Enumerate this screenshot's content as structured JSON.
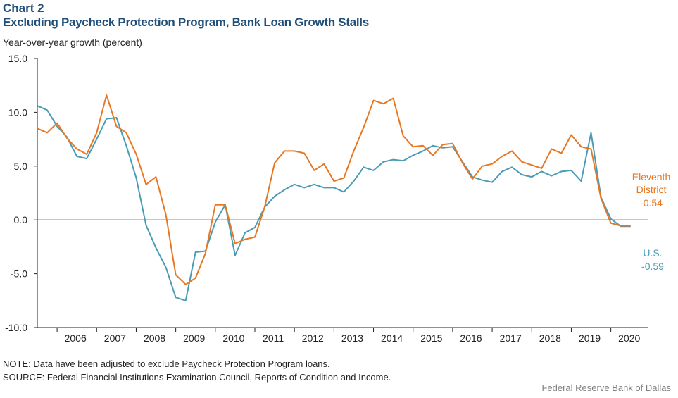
{
  "header": {
    "chart_number": "Chart 2",
    "title": "Excluding Paycheck Protection Program, Bank Loan Growth Stalls"
  },
  "footer": {
    "note": "NOTE: Data have been adjusted to exclude Paycheck Protection Program loans.",
    "source": "SOURCE: Federal Financial Institutions Examination Council, Reports of Condition and Income.",
    "credit": "Federal Reserve Bank of Dallas"
  },
  "chart_data": {
    "type": "line",
    "title": "Excluding Paycheck Protection Program, Bank Loan Growth Stalls",
    "ylabel": "Year-over-year  growth  (percent)",
    "xlabel": "",
    "ylim": [
      -10,
      15
    ],
    "yticks": [
      "15.0",
      "10.0",
      "5.0",
      "0.0",
      "-5.0",
      "-10.0"
    ],
    "ytick_values": [
      15,
      10,
      5,
      0,
      -5,
      -10
    ],
    "xlim": [
      2005.5,
      2020.95
    ],
    "xticks": [
      "2006",
      "2007",
      "2008",
      "2009",
      "2010",
      "2011",
      "2012",
      "2013",
      "2014",
      "2015",
      "2016",
      "2017",
      "2018",
      "2019",
      "2020"
    ],
    "grid": false,
    "series": [
      {
        "name": "U.S.",
        "color": "#4a9bb5",
        "end_label": [
          "U.S.",
          "-0.59"
        ],
        "x": [
          2005.5,
          2005.75,
          2006.0,
          2006.25,
          2006.5,
          2006.75,
          2007.0,
          2007.25,
          2007.5,
          2007.75,
          2008.0,
          2008.25,
          2008.5,
          2008.75,
          2009.0,
          2009.25,
          2009.5,
          2009.75,
          2010.0,
          2010.25,
          2010.5,
          2010.75,
          2011.0,
          2011.25,
          2011.5,
          2011.75,
          2012.0,
          2012.25,
          2012.5,
          2012.75,
          2013.0,
          2013.25,
          2013.5,
          2013.75,
          2014.0,
          2014.25,
          2014.5,
          2014.75,
          2015.0,
          2015.25,
          2015.5,
          2015.75,
          2016.0,
          2016.25,
          2016.5,
          2016.75,
          2017.0,
          2017.25,
          2017.5,
          2017.75,
          2018.0,
          2018.25,
          2018.5,
          2018.75,
          2019.0,
          2019.25,
          2019.5,
          2019.75,
          2020.0,
          2020.25,
          2020.5
        ],
        "values": [
          10.6,
          10.2,
          8.7,
          7.7,
          5.9,
          5.7,
          7.5,
          9.4,
          9.5,
          6.9,
          3.9,
          -0.5,
          -2.6,
          -4.4,
          -7.2,
          -7.5,
          -3.0,
          -2.9,
          -0.2,
          1.4,
          -3.3,
          -1.2,
          -0.7,
          1.2,
          2.2,
          2.8,
          3.3,
          3.0,
          3.3,
          3.0,
          3.0,
          2.6,
          3.6,
          4.9,
          4.6,
          5.4,
          5.6,
          5.5,
          6.0,
          6.4,
          6.9,
          6.7,
          6.8,
          5.4,
          4.0,
          3.7,
          3.5,
          4.5,
          4.9,
          4.2,
          4.0,
          4.5,
          4.1,
          4.5,
          4.6,
          3.6,
          8.1,
          2.1,
          0.1,
          -0.59,
          -0.59
        ]
      },
      {
        "name": "Eleventh District",
        "color": "#e87722",
        "end_label": [
          "Eleventh",
          "District",
          "-0.54"
        ],
        "x": [
          2005.5,
          2005.75,
          2006.0,
          2006.25,
          2006.5,
          2006.75,
          2007.0,
          2007.25,
          2007.5,
          2007.75,
          2008.0,
          2008.25,
          2008.5,
          2008.75,
          2009.0,
          2009.25,
          2009.5,
          2009.75,
          2010.0,
          2010.25,
          2010.5,
          2010.75,
          2011.0,
          2011.25,
          2011.5,
          2011.75,
          2012.0,
          2012.25,
          2012.5,
          2012.75,
          2013.0,
          2013.25,
          2013.5,
          2013.75,
          2014.0,
          2014.25,
          2014.5,
          2014.75,
          2015.0,
          2015.25,
          2015.5,
          2015.75,
          2016.0,
          2016.25,
          2016.5,
          2016.75,
          2017.0,
          2017.25,
          2017.5,
          2017.75,
          2018.0,
          2018.25,
          2018.5,
          2018.75,
          2019.0,
          2019.25,
          2019.5,
          2019.75,
          2020.0,
          2020.25,
          2020.5
        ],
        "values": [
          8.5,
          8.1,
          9.0,
          7.6,
          6.6,
          6.1,
          8.1,
          11.6,
          8.7,
          8.1,
          6.1,
          3.3,
          4.0,
          0.5,
          -5.1,
          -6.0,
          -5.4,
          -3.1,
          1.4,
          1.4,
          -2.2,
          -1.8,
          -1.6,
          1.2,
          5.3,
          6.4,
          6.4,
          6.2,
          4.6,
          5.2,
          3.6,
          3.9,
          6.4,
          8.6,
          11.1,
          10.8,
          11.3,
          7.8,
          6.8,
          6.9,
          6.0,
          7.0,
          7.1,
          5.3,
          3.8,
          5.0,
          5.2,
          5.9,
          6.4,
          5.4,
          5.1,
          4.8,
          6.6,
          6.2,
          7.9,
          6.8,
          6.6,
          2.0,
          -0.3,
          -0.54,
          -0.54
        ]
      }
    ]
  }
}
